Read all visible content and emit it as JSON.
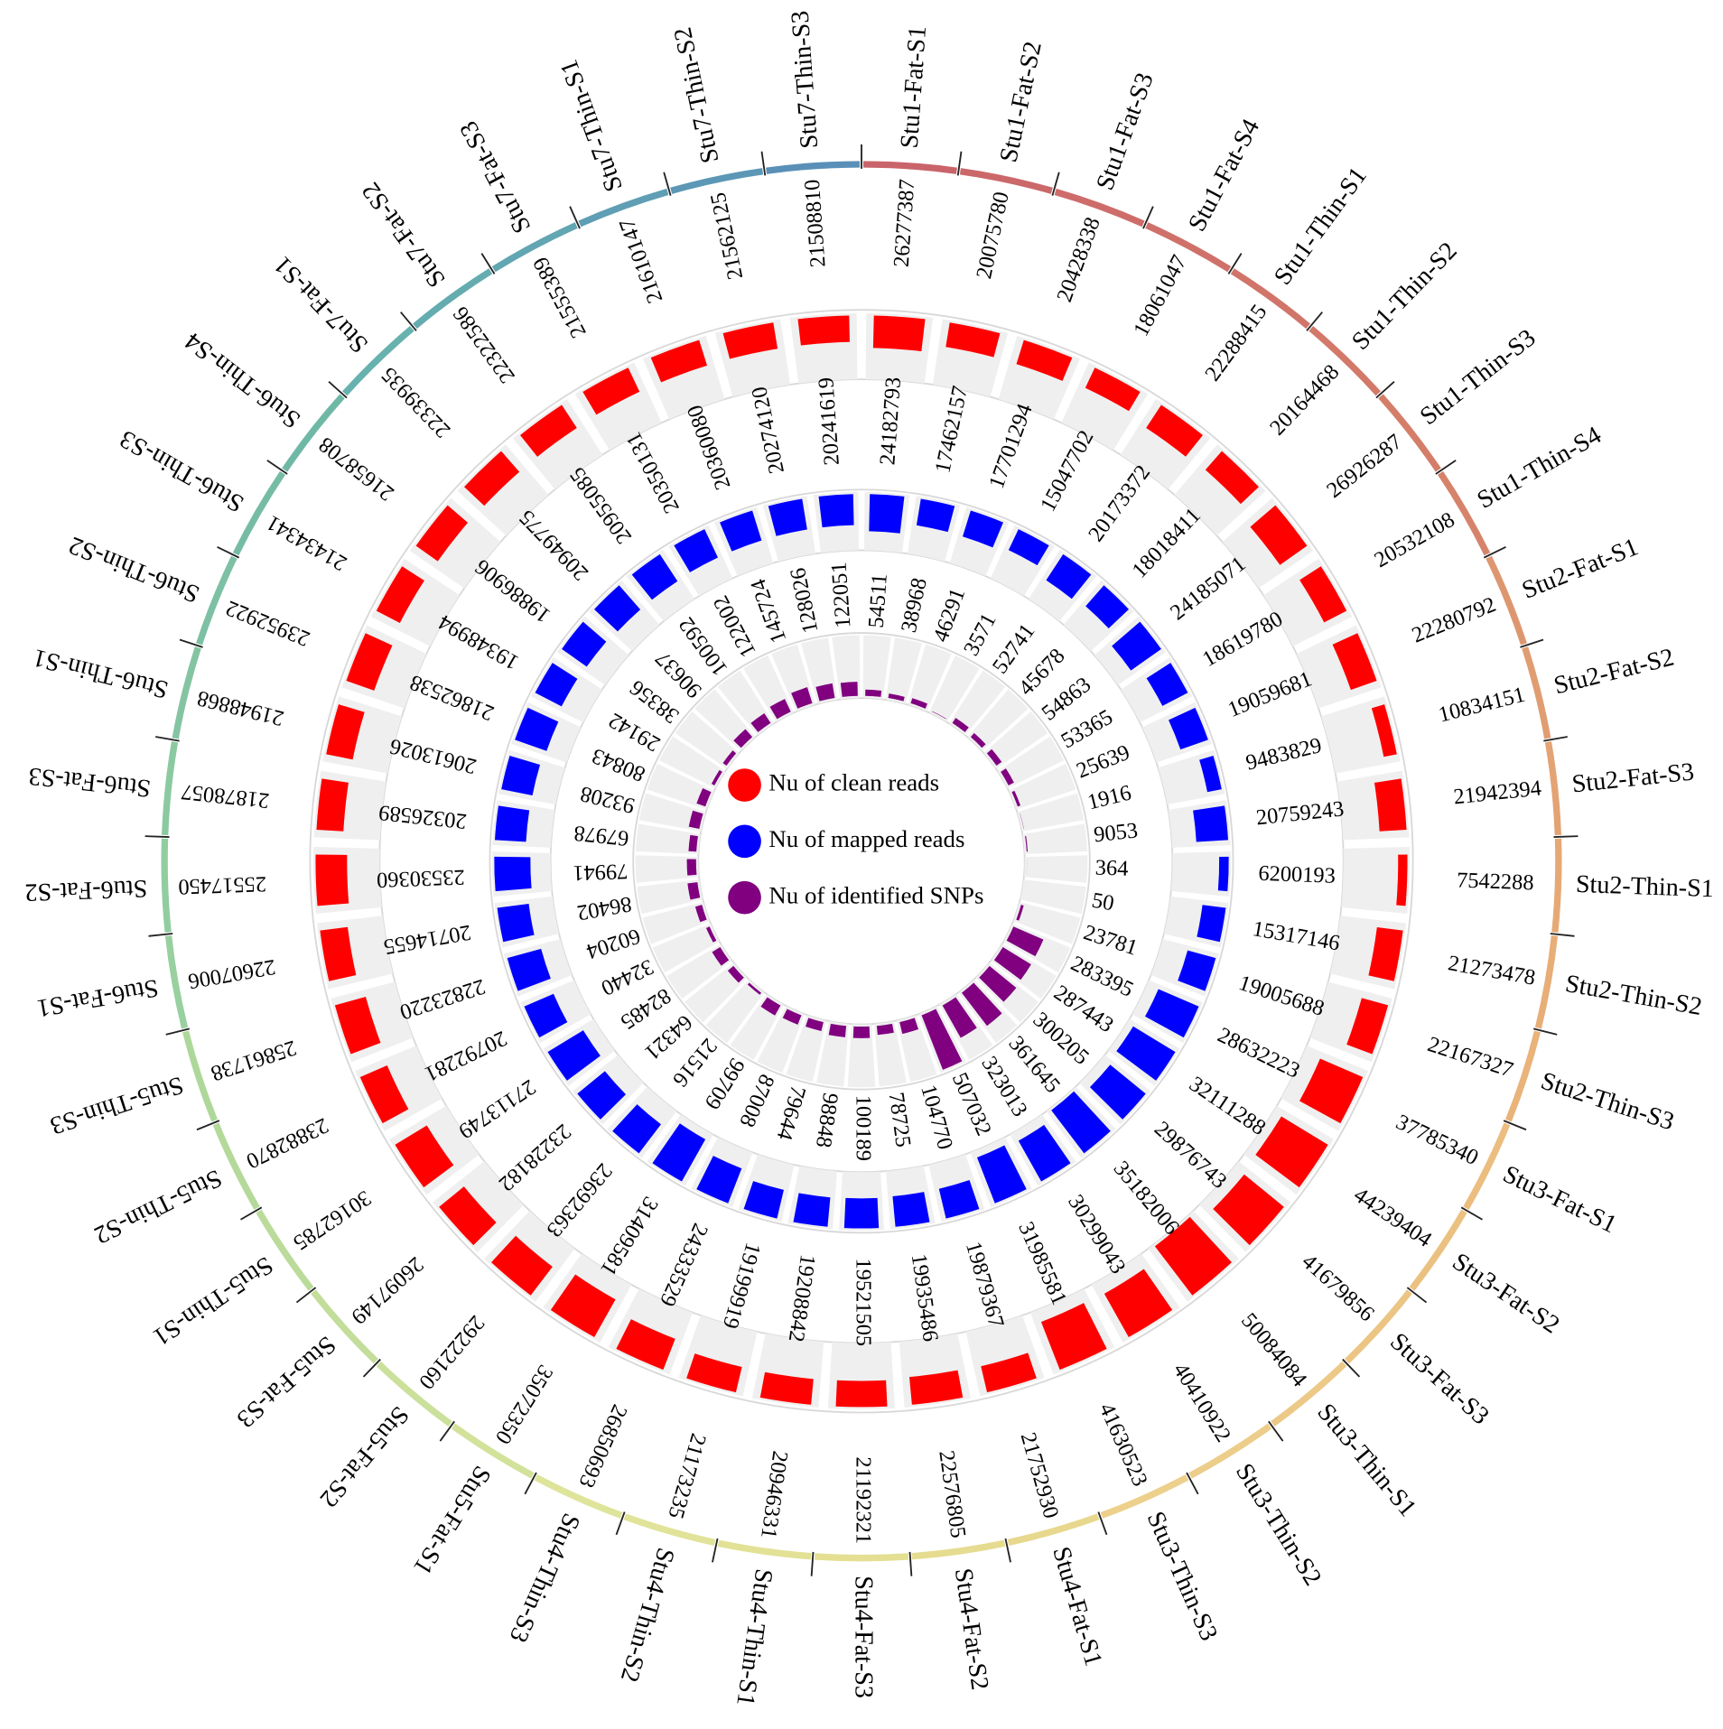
{
  "chart_data": {
    "type": "radial_bar",
    "categories": [
      "Stu1-Fat-S1",
      "Stu1-Fat-S2",
      "Stu1-Fat-S3",
      "Stu1-Fat-S4",
      "Stu1-Thin-S1",
      "Stu1-Thin-S2",
      "Stu1-Thin-S3",
      "Stu1-Thin-S4",
      "Stu2-Fat-S1",
      "Stu2-Fat-S2",
      "Stu2-Fat-S3",
      "Stu2-Thin-S1",
      "Stu2-Thin-S2",
      "Stu2-Thin-S3",
      "Stu3-Fat-S1",
      "Stu3-Fat-S2",
      "Stu3-Fat-S3",
      "Stu3-Thin-S1",
      "Stu3-Thin-S2",
      "Stu3-Thin-S3",
      "Stu4-Fat-S1",
      "Stu4-Fat-S2",
      "Stu4-Fat-S3",
      "Stu4-Thin-S1",
      "Stu4-Thin-S2",
      "Stu4-Thin-S3",
      "Stu5-Fat-S1",
      "Stu5-Fat-S2",
      "Stu5-Fat-S3",
      "Stu5-Thin-S1",
      "Stu5-Thin-S2",
      "Stu5-Thin-S3",
      "Stu6-Fat-S1",
      "Stu6-Fat-S2",
      "Stu6-Fat-S3",
      "Stu6-Thin-S1",
      "Stu6-Thin-S2",
      "Stu6-Thin-S3",
      "Stu6-Thin-S4",
      "Stu7-Fat-S1",
      "Stu7-Fat-S2",
      "Stu7-Fat-S3",
      "Stu7-Thin-S1",
      "Stu7-Thin-S2",
      "Stu7-Thin-S3"
    ],
    "category_colors": [
      "#c9646a",
      "#cb686a",
      "#cd6c6a",
      "#cf716a",
      "#d1756a",
      "#d3796a",
      "#d47e6a",
      "#d6836b",
      "#dd9770",
      "#e09d72",
      "#e3a374",
      "#e6a976",
      "#e8ae78",
      "#e9b37a",
      "#ebbd7e",
      "#ebc181",
      "#ecc584",
      "#ecc987",
      "#eccd8a",
      "#ecd08c",
      "#e8d88e",
      "#e6dc90",
      "#e4df93",
      "#e2e196",
      "#e0e398",
      "#dee49a",
      "#d2e29a",
      "#cbe09a",
      "#c3dd9a",
      "#bbdb9a",
      "#b4d99a",
      "#aed89a",
      "#98d09f",
      "#92cda0",
      "#8bc9a1",
      "#84c4a3",
      "#7dc0a4",
      "#76bca5",
      "#70b8a6",
      "#67b2ae",
      "#64acb0",
      "#61a6b2",
      "#5f9eb4",
      "#5c97b6",
      "#5a90b8"
    ],
    "series": [
      {
        "name": "Nu of clean reads",
        "color": "#ff0000",
        "values": [
          26277387,
          20075780,
          20428338,
          18061047,
          22288415,
          20164468,
          26926287,
          20532108,
          22280792,
          10834151,
          21942394,
          7542288,
          21273478,
          22167327,
          37785340,
          44239404,
          41679856,
          50084084,
          40410922,
          41630523,
          21752930,
          22576805,
          21192321,
          20946331,
          21173235,
          26850693,
          35072350,
          29222160,
          26097149,
          30162785,
          23882870,
          25861738,
          22607006,
          25517450,
          21878057,
          21948868,
          23952922,
          21434341,
          21658708,
          22339935,
          22322586,
          21555389,
          21610147,
          21562125,
          21508810
        ]
      },
      {
        "name": "Nu of mapped reads",
        "color": "#0000ff",
        "values": [
          24182793,
          17462157,
          17701294,
          15047702,
          20173372,
          18018411,
          24185071,
          18619780,
          19059681,
          9483829,
          20759243,
          6200193,
          15317146,
          19005688,
          28632223,
          32111288,
          29876743,
          35182006,
          30299043,
          31985581,
          19879367,
          19935486,
          19521505,
          19208842,
          19199919,
          24333529,
          31409581,
          23692363,
          23228182,
          27113749,
          20792281,
          22823220,
          20714655,
          23530360,
          20326589,
          20613026,
          21862538,
          19348994,
          19886906,
          20949775,
          20955085,
          20350131,
          20360080,
          20274120,
          20241619
        ]
      },
      {
        "name": "Nu of identified SNPs",
        "color": "#800080",
        "values": [
          54511,
          38968,
          46291,
          3571,
          52741,
          45678,
          54863,
          53365,
          25639,
          1916,
          9053,
          364,
          50,
          23781,
          283395,
          287443,
          300205,
          361645,
          323013,
          507032,
          104770,
          78725,
          100189,
          98848,
          79644,
          87008,
          99709,
          21516,
          64321,
          82485,
          32440,
          60204,
          86402,
          79941,
          67978,
          93208,
          80843,
          29142,
          38356,
          90637,
          100592,
          122002,
          145724,
          128026,
          122051
        ]
      }
    ]
  }
}
